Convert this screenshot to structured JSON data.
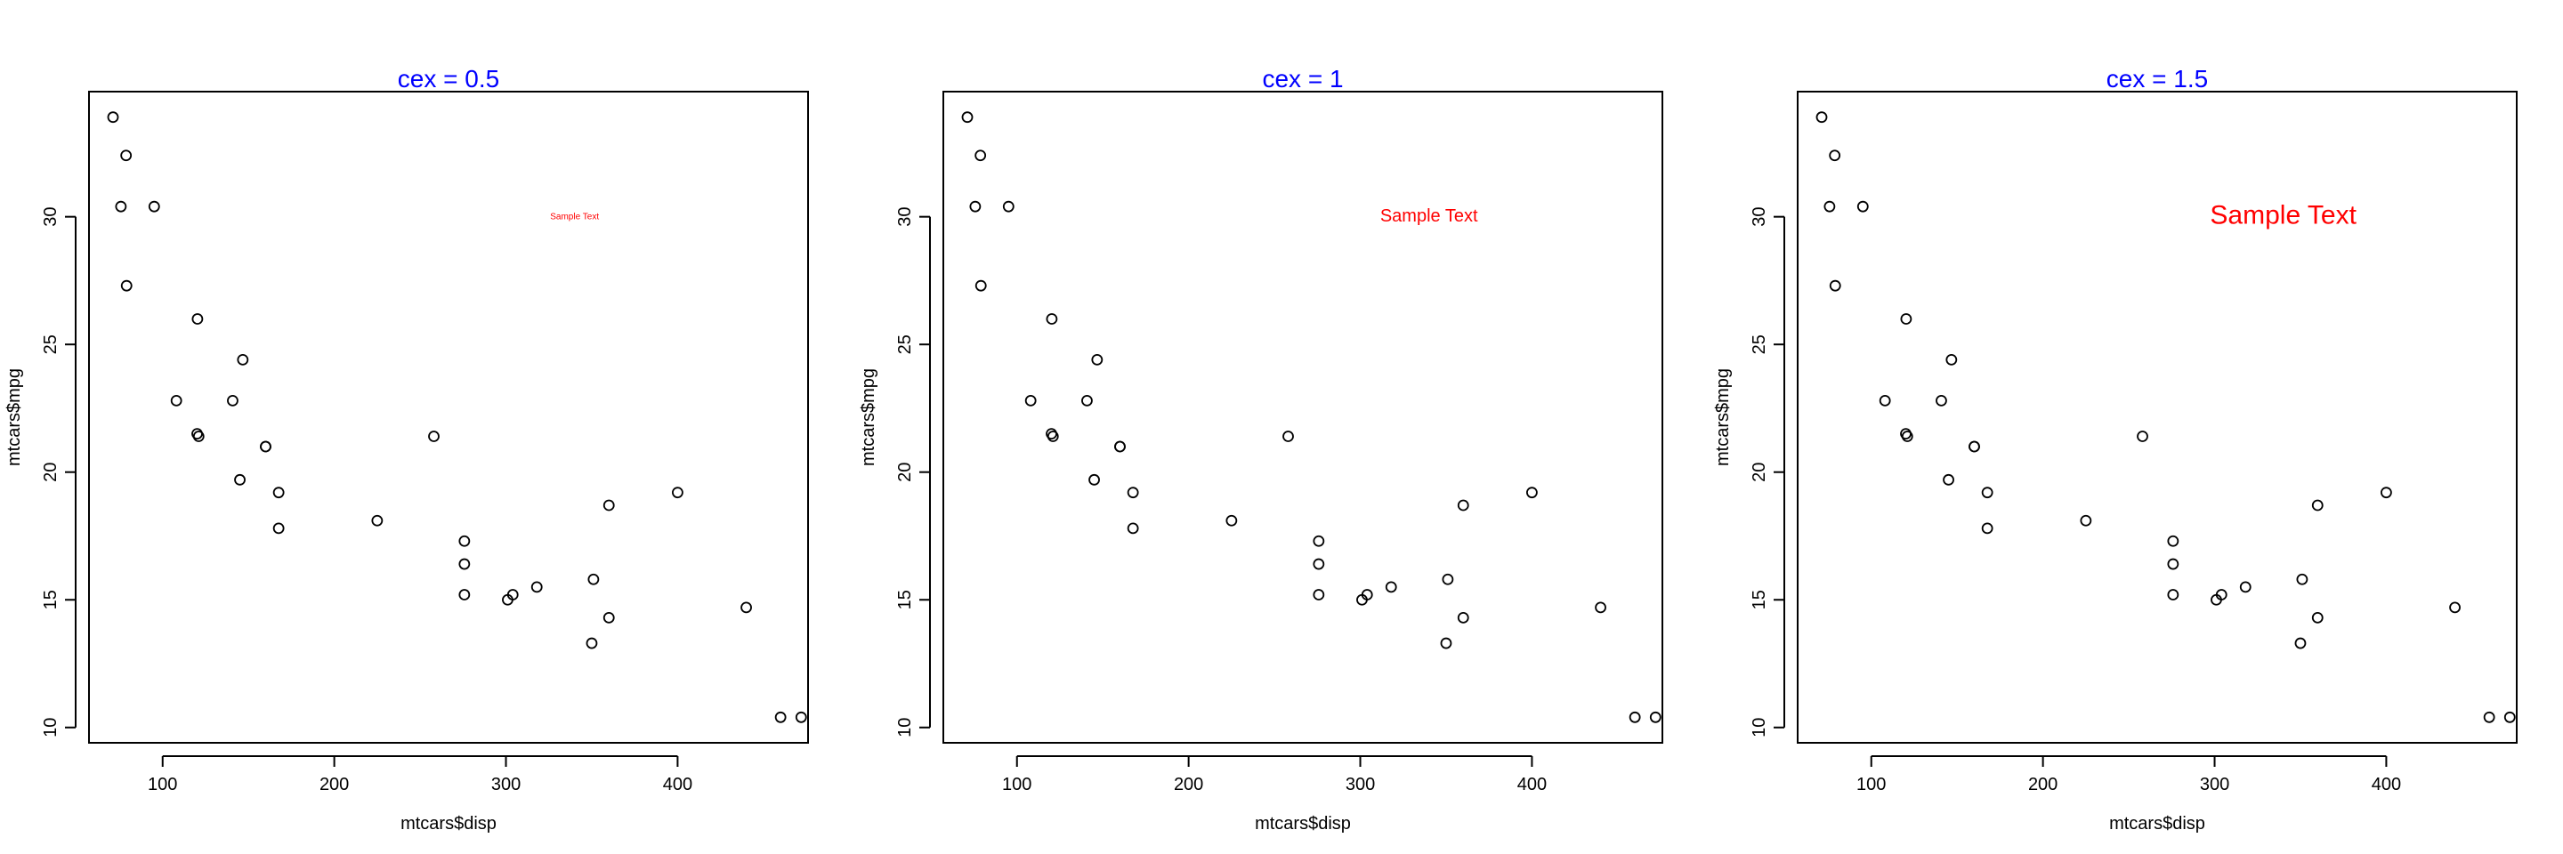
{
  "colors": {
    "title": "#0000ff",
    "annotation": "#ff0000",
    "points": "#000000",
    "axes": "#000000"
  },
  "chart_data": [
    {
      "type": "scatter",
      "title": "cex =  0.5",
      "xlabel": "mtcars$disp",
      "ylabel": "mtcars$mpg",
      "xlim": [
        57.1,
        476.0
      ],
      "ylim": [
        9.4,
        34.9
      ],
      "xticks": [
        100,
        200,
        300,
        400
      ],
      "yticks": [
        10,
        15,
        20,
        25,
        30
      ],
      "annotation": {
        "text": "Sample Text",
        "x": 340,
        "y": 30,
        "cex": 0.5
      },
      "points": [
        [
          160,
          21
        ],
        [
          160,
          21
        ],
        [
          108,
          22.8
        ],
        [
          258,
          21.4
        ],
        [
          360,
          18.7
        ],
        [
          225,
          18.1
        ],
        [
          360,
          14.3
        ],
        [
          146.7,
          24.4
        ],
        [
          140.8,
          22.8
        ],
        [
          167.6,
          19.2
        ],
        [
          167.6,
          17.8
        ],
        [
          275.8,
          16.4
        ],
        [
          275.8,
          17.3
        ],
        [
          275.8,
          15.2
        ],
        [
          472,
          10.4
        ],
        [
          460,
          10.4
        ],
        [
          440,
          14.7
        ],
        [
          78.7,
          32.4
        ],
        [
          75.7,
          30.4
        ],
        [
          71.1,
          33.9
        ],
        [
          120.1,
          21.5
        ],
        [
          318,
          15.5
        ],
        [
          304,
          15.2
        ],
        [
          350,
          13.3
        ],
        [
          400,
          19.2
        ],
        [
          79,
          27.3
        ],
        [
          120.3,
          26
        ],
        [
          95.1,
          30.4
        ],
        [
          351,
          15.8
        ],
        [
          145,
          19.7
        ],
        [
          301,
          15
        ],
        [
          121,
          21.4
        ]
      ]
    },
    {
      "type": "scatter",
      "title": "cex =  1",
      "xlabel": "mtcars$disp",
      "ylabel": "mtcars$mpg",
      "xlim": [
        57.1,
        476.0
      ],
      "ylim": [
        9.4,
        34.9
      ],
      "xticks": [
        100,
        200,
        300,
        400
      ],
      "yticks": [
        10,
        15,
        20,
        25,
        30
      ],
      "annotation": {
        "text": "Sample Text",
        "x": 340,
        "y": 30,
        "cex": 1
      },
      "points": [
        [
          160,
          21
        ],
        [
          160,
          21
        ],
        [
          108,
          22.8
        ],
        [
          258,
          21.4
        ],
        [
          360,
          18.7
        ],
        [
          225,
          18.1
        ],
        [
          360,
          14.3
        ],
        [
          146.7,
          24.4
        ],
        [
          140.8,
          22.8
        ],
        [
          167.6,
          19.2
        ],
        [
          167.6,
          17.8
        ],
        [
          275.8,
          16.4
        ],
        [
          275.8,
          17.3
        ],
        [
          275.8,
          15.2
        ],
        [
          472,
          10.4
        ],
        [
          460,
          10.4
        ],
        [
          440,
          14.7
        ],
        [
          78.7,
          32.4
        ],
        [
          75.7,
          30.4
        ],
        [
          71.1,
          33.9
        ],
        [
          120.1,
          21.5
        ],
        [
          318,
          15.5
        ],
        [
          304,
          15.2
        ],
        [
          350,
          13.3
        ],
        [
          400,
          19.2
        ],
        [
          79,
          27.3
        ],
        [
          120.3,
          26
        ],
        [
          95.1,
          30.4
        ],
        [
          351,
          15.8
        ],
        [
          145,
          19.7
        ],
        [
          301,
          15
        ],
        [
          121,
          21.4
        ]
      ]
    },
    {
      "type": "scatter",
      "title": "cex =  1.5",
      "xlabel": "mtcars$disp",
      "ylabel": "mtcars$mpg",
      "xlim": [
        57.1,
        476.0
      ],
      "ylim": [
        9.4,
        34.9
      ],
      "xticks": [
        100,
        200,
        300,
        400
      ],
      "yticks": [
        10,
        15,
        20,
        25,
        30
      ],
      "annotation": {
        "text": "Sample Text",
        "x": 340,
        "y": 30,
        "cex": 1.5
      },
      "points": [
        [
          160,
          21
        ],
        [
          160,
          21
        ],
        [
          108,
          22.8
        ],
        [
          258,
          21.4
        ],
        [
          360,
          18.7
        ],
        [
          225,
          18.1
        ],
        [
          360,
          14.3
        ],
        [
          146.7,
          24.4
        ],
        [
          140.8,
          22.8
        ],
        [
          167.6,
          19.2
        ],
        [
          167.6,
          17.8
        ],
        [
          275.8,
          16.4
        ],
        [
          275.8,
          17.3
        ],
        [
          275.8,
          15.2
        ],
        [
          472,
          10.4
        ],
        [
          460,
          10.4
        ],
        [
          440,
          14.7
        ],
        [
          78.7,
          32.4
        ],
        [
          75.7,
          30.4
        ],
        [
          71.1,
          33.9
        ],
        [
          120.1,
          21.5
        ],
        [
          318,
          15.5
        ],
        [
          304,
          15.2
        ],
        [
          350,
          13.3
        ],
        [
          400,
          19.2
        ],
        [
          79,
          27.3
        ],
        [
          120.3,
          26
        ],
        [
          95.1,
          30.4
        ],
        [
          351,
          15.8
        ],
        [
          145,
          19.7
        ],
        [
          301,
          15
        ],
        [
          121,
          21.4
        ]
      ]
    }
  ]
}
